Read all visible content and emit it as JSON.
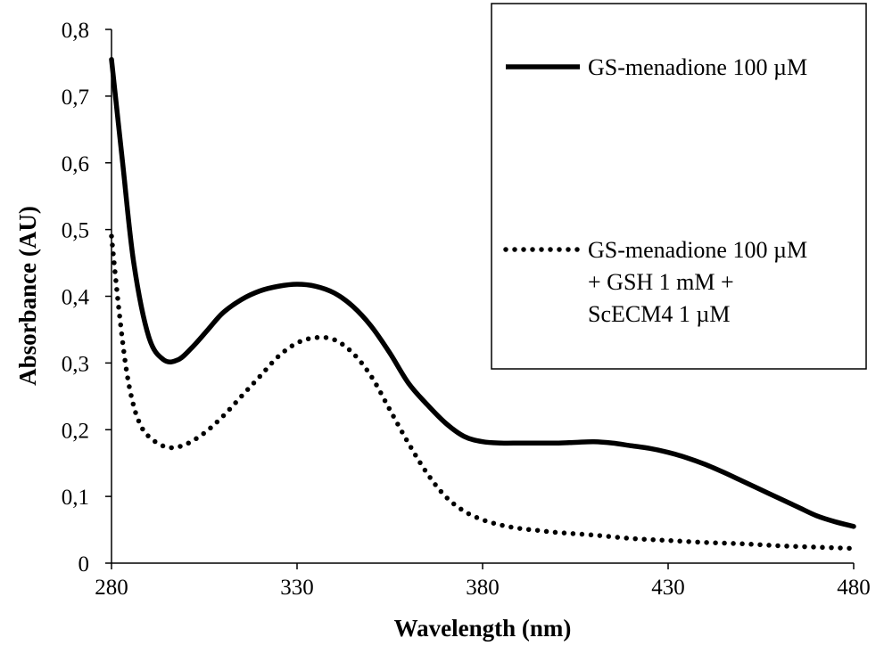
{
  "chart_data": {
    "type": "line",
    "xlabel": "Wavelength (nm)",
    "ylabel": "Absorbance (AU)",
    "xlim": [
      280,
      480
    ],
    "ylim": [
      0,
      0.8
    ],
    "x_ticks": [
      "280",
      "330",
      "380",
      "430",
      "480"
    ],
    "y_ticks": [
      "0",
      "0,1",
      "0,2",
      "0,3",
      "0,4",
      "0,5",
      "0,6",
      "0,7",
      "0,8"
    ],
    "grid": false,
    "legend_position": "top-right",
    "series": [
      {
        "name": "GS-menadione 100 µM",
        "style": "solid",
        "color": "#000000",
        "x": [
          280,
          283,
          286,
          290,
          294,
          298,
          302,
          306,
          310,
          315,
          320,
          325,
          330,
          335,
          340,
          345,
          350,
          355,
          360,
          365,
          370,
          375,
          380,
          385,
          390,
          395,
          400,
          405,
          410,
          415,
          420,
          425,
          430,
          435,
          440,
          445,
          450,
          455,
          460,
          465,
          470,
          475,
          480
        ],
        "y": [
          0.755,
          0.6,
          0.45,
          0.34,
          0.305,
          0.305,
          0.325,
          0.35,
          0.375,
          0.395,
          0.408,
          0.415,
          0.418,
          0.415,
          0.405,
          0.385,
          0.355,
          0.315,
          0.27,
          0.238,
          0.21,
          0.19,
          0.182,
          0.18,
          0.18,
          0.18,
          0.18,
          0.181,
          0.182,
          0.18,
          0.176,
          0.172,
          0.166,
          0.158,
          0.148,
          0.136,
          0.123,
          0.11,
          0.097,
          0.084,
          0.071,
          0.062,
          0.055
        ]
      },
      {
        "name": "GS-menadione 100 µM\n+ GSH 1 mM +\nScECM4 1 µM",
        "style": "dotted",
        "color": "#000000",
        "x": [
          280,
          282,
          284,
          286,
          288,
          290,
          293,
          296,
          300,
          305,
          310,
          315,
          320,
          325,
          330,
          335,
          340,
          345,
          350,
          355,
          360,
          365,
          370,
          375,
          380,
          385,
          390,
          395,
          400,
          410,
          420,
          430,
          440,
          450,
          460,
          470,
          480
        ],
        "y": [
          0.49,
          0.38,
          0.29,
          0.235,
          0.205,
          0.19,
          0.178,
          0.173,
          0.178,
          0.195,
          0.22,
          0.25,
          0.28,
          0.31,
          0.33,
          0.338,
          0.335,
          0.315,
          0.28,
          0.23,
          0.18,
          0.135,
          0.1,
          0.078,
          0.065,
          0.057,
          0.052,
          0.049,
          0.046,
          0.042,
          0.037,
          0.034,
          0.031,
          0.029,
          0.026,
          0.024,
          0.022
        ]
      }
    ]
  }
}
